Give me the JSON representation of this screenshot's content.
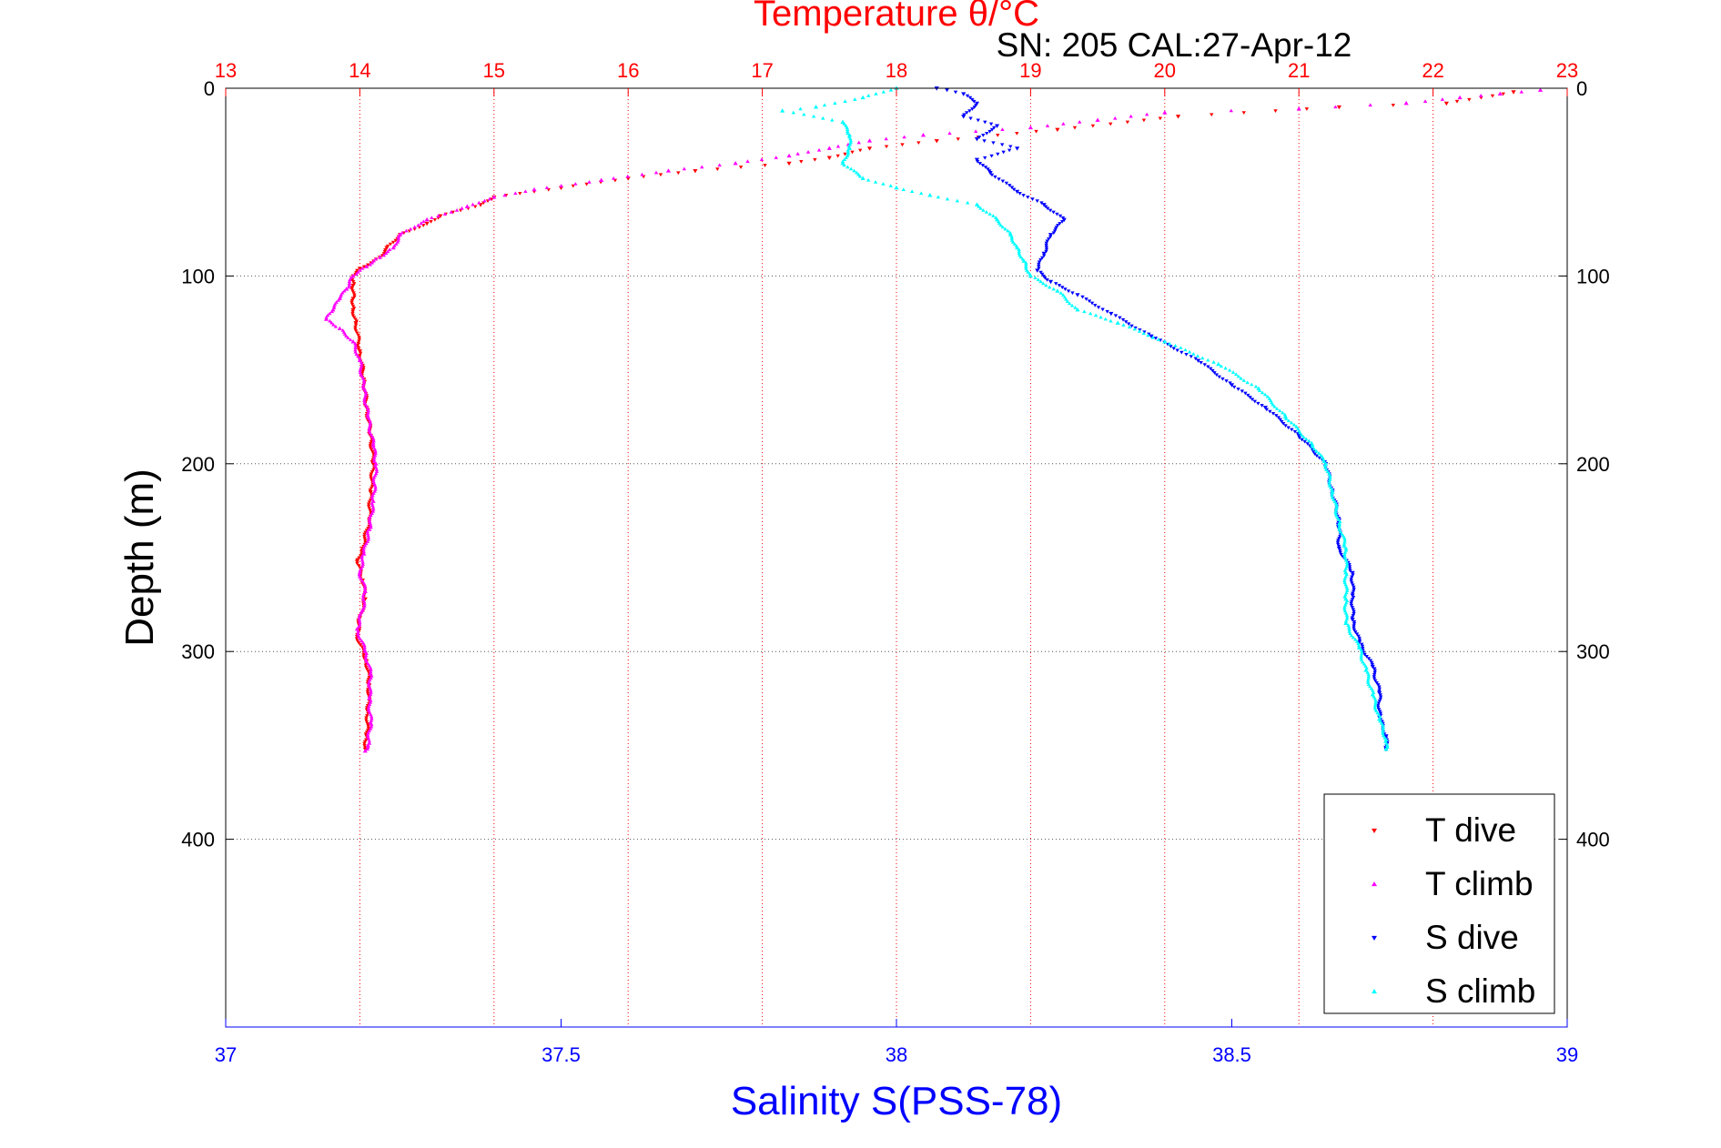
{
  "chart_data": {
    "type": "scatter",
    "title": "Temperature θ/°C",
    "subtitle": "SN: 205  CAL:27-Apr-12",
    "ylabel": "Depth (m)",
    "xlabel_bottom": "Salinity S(PSS-78)",
    "xlabel_top": "Temperature θ/°C",
    "y_axis": {
      "range": [
        0,
        500
      ],
      "reversed": true,
      "ticks": [
        "0",
        "100",
        "200",
        "300",
        "400"
      ],
      "tick_values": [
        0,
        100,
        200,
        300,
        400
      ]
    },
    "x_top_axis": {
      "range": [
        13,
        23
      ],
      "ticks": [
        "13",
        "14",
        "15",
        "16",
        "17",
        "18",
        "19",
        "20",
        "21",
        "22",
        "23"
      ],
      "tick_values": [
        13,
        14,
        15,
        16,
        17,
        18,
        19,
        20,
        21,
        22,
        23
      ]
    },
    "x_bottom_axis": {
      "range": [
        37,
        39
      ],
      "ticks": [
        "37",
        "37.5",
        "38",
        "38.5",
        "39"
      ],
      "tick_values": [
        37,
        37.5,
        38,
        38.5,
        39
      ]
    },
    "grid": true,
    "legend": {
      "placement": "bottom-right",
      "entries": [
        "T dive",
        "T climb",
        "S dive",
        "S climb"
      ]
    },
    "colors": {
      "title": "#ff0000",
      "top_axis": "#ff0000",
      "bottom_axis": "#0000ff",
      "t_dive": "#ff0000",
      "t_climb": "#ff00ff",
      "s_dive": "#0000ff",
      "s_climb": "#00ffff"
    },
    "series": [
      {
        "name": "T dive",
        "axis": "top",
        "marker": "triangle-down",
        "color": "#ff0000",
        "points": [
          [
            22.6,
            2
          ],
          [
            22.1,
            8
          ],
          [
            21.3,
            10
          ],
          [
            20.1,
            15
          ],
          [
            19.2,
            22
          ],
          [
            18.3,
            28
          ],
          [
            17.8,
            32
          ],
          [
            17.5,
            37
          ],
          [
            17.2,
            40
          ],
          [
            16.5,
            44
          ],
          [
            16.0,
            48
          ],
          [
            15.5,
            53
          ],
          [
            15.0,
            58
          ],
          [
            14.9,
            62
          ],
          [
            14.6,
            68
          ],
          [
            14.5,
            72
          ],
          [
            14.3,
            78
          ],
          [
            14.2,
            85
          ],
          [
            14.15,
            90
          ],
          [
            14.0,
            96
          ],
          [
            13.95,
            100
          ],
          [
            13.95,
            105
          ],
          [
            13.95,
            112
          ],
          [
            13.95,
            118
          ],
          [
            13.97,
            125
          ],
          [
            14.0,
            140
          ],
          [
            14.03,
            155
          ],
          [
            14.05,
            170
          ],
          [
            14.08,
            185
          ],
          [
            14.1,
            200
          ],
          [
            14.08,
            215
          ],
          [
            14.07,
            230
          ],
          [
            14.02,
            245
          ],
          [
            13.98,
            252
          ],
          [
            14.02,
            262
          ],
          [
            14.04,
            272
          ],
          [
            14.0,
            282
          ],
          [
            13.98,
            292
          ],
          [
            14.05,
            305
          ],
          [
            14.07,
            318
          ],
          [
            14.06,
            332
          ],
          [
            14.05,
            345
          ],
          [
            14.04,
            352
          ]
        ]
      },
      {
        "name": "T climb",
        "axis": "top",
        "marker": "triangle-up",
        "color": "#ff00ff",
        "points": [
          [
            22.8,
            1
          ],
          [
            22.5,
            3
          ],
          [
            22.2,
            5
          ],
          [
            21.8,
            8
          ],
          [
            21.0,
            11
          ],
          [
            20.0,
            13
          ],
          [
            19.5,
            17
          ],
          [
            19.0,
            21
          ],
          [
            18.2,
            25
          ],
          [
            17.8,
            28
          ],
          [
            17.5,
            32
          ],
          [
            17.2,
            36
          ],
          [
            16.8,
            40
          ],
          [
            16.3,
            44
          ],
          [
            15.8,
            49
          ],
          [
            15.3,
            54
          ],
          [
            15.0,
            58
          ],
          [
            14.8,
            63
          ],
          [
            14.5,
            70
          ],
          [
            14.3,
            78
          ],
          [
            14.25,
            85
          ],
          [
            14.15,
            90
          ],
          [
            14.05,
            95
          ],
          [
            13.95,
            100
          ],
          [
            13.9,
            107
          ],
          [
            13.85,
            112
          ],
          [
            13.8,
            118
          ],
          [
            13.75,
            123
          ],
          [
            13.85,
            128
          ],
          [
            13.95,
            135
          ],
          [
            14.0,
            145
          ],
          [
            14.03,
            160
          ],
          [
            14.06,
            175
          ],
          [
            14.1,
            190
          ],
          [
            14.12,
            200
          ],
          [
            14.1,
            220
          ],
          [
            14.07,
            235
          ],
          [
            14.03,
            248
          ],
          [
            14.0,
            258
          ],
          [
            14.04,
            268
          ],
          [
            14.02,
            278
          ],
          [
            13.98,
            288
          ],
          [
            14.04,
            300
          ],
          [
            14.08,
            312
          ],
          [
            14.07,
            325
          ],
          [
            14.08,
            338
          ],
          [
            14.06,
            350
          ],
          [
            14.04,
            353
          ]
        ]
      },
      {
        "name": "S dive",
        "axis": "bottom",
        "marker": "triangle-down",
        "color": "#0000ff",
        "points": [
          [
            38.06,
            0
          ],
          [
            38.1,
            3
          ],
          [
            38.12,
            8
          ],
          [
            38.1,
            15
          ],
          [
            38.15,
            20
          ],
          [
            38.12,
            27
          ],
          [
            38.18,
            32
          ],
          [
            38.12,
            38
          ],
          [
            38.14,
            45
          ],
          [
            38.18,
            55
          ],
          [
            38.22,
            62
          ],
          [
            38.25,
            70
          ],
          [
            38.23,
            78
          ],
          [
            38.22,
            88
          ],
          [
            38.21,
            97
          ],
          [
            38.23,
            103
          ],
          [
            38.27,
            110
          ],
          [
            38.32,
            120
          ],
          [
            38.38,
            132
          ],
          [
            38.45,
            145
          ],
          [
            38.5,
            158
          ],
          [
            38.55,
            170
          ],
          [
            38.6,
            185
          ],
          [
            38.64,
            200
          ],
          [
            38.65,
            215
          ],
          [
            38.66,
            230
          ],
          [
            38.66,
            245
          ],
          [
            38.68,
            258
          ],
          [
            38.68,
            270
          ],
          [
            38.68,
            283
          ],
          [
            38.69,
            295
          ],
          [
            38.71,
            308
          ],
          [
            38.72,
            322
          ],
          [
            38.72,
            335
          ],
          [
            38.73,
            345
          ],
          [
            38.73,
            352
          ]
        ]
      },
      {
        "name": "S climb",
        "axis": "bottom",
        "marker": "triangle-up",
        "color": "#00ffff",
        "points": [
          [
            38.0,
            0
          ],
          [
            37.95,
            5
          ],
          [
            37.88,
            10
          ],
          [
            37.83,
            12
          ],
          [
            37.92,
            18
          ],
          [
            37.93,
            25
          ],
          [
            37.93,
            32
          ],
          [
            37.92,
            40
          ],
          [
            37.95,
            48
          ],
          [
            38.0,
            53
          ],
          [
            38.05,
            57
          ],
          [
            38.12,
            62
          ],
          [
            38.15,
            70
          ],
          [
            38.17,
            78
          ],
          [
            38.18,
            85
          ],
          [
            38.19,
            92
          ],
          [
            38.2,
            100
          ],
          [
            38.24,
            108
          ],
          [
            38.27,
            118
          ],
          [
            38.33,
            125
          ],
          [
            38.4,
            135
          ],
          [
            38.48,
            147
          ],
          [
            38.54,
            160
          ],
          [
            38.58,
            175
          ],
          [
            38.62,
            190
          ],
          [
            38.64,
            200
          ],
          [
            38.65,
            215
          ],
          [
            38.66,
            232
          ],
          [
            38.67,
            245
          ],
          [
            38.67,
            258
          ],
          [
            38.67,
            272
          ],
          [
            38.67,
            285
          ],
          [
            38.69,
            298
          ],
          [
            38.7,
            310
          ],
          [
            38.71,
            323
          ],
          [
            38.72,
            336
          ],
          [
            38.73,
            347
          ],
          [
            38.73,
            352
          ]
        ]
      }
    ]
  }
}
